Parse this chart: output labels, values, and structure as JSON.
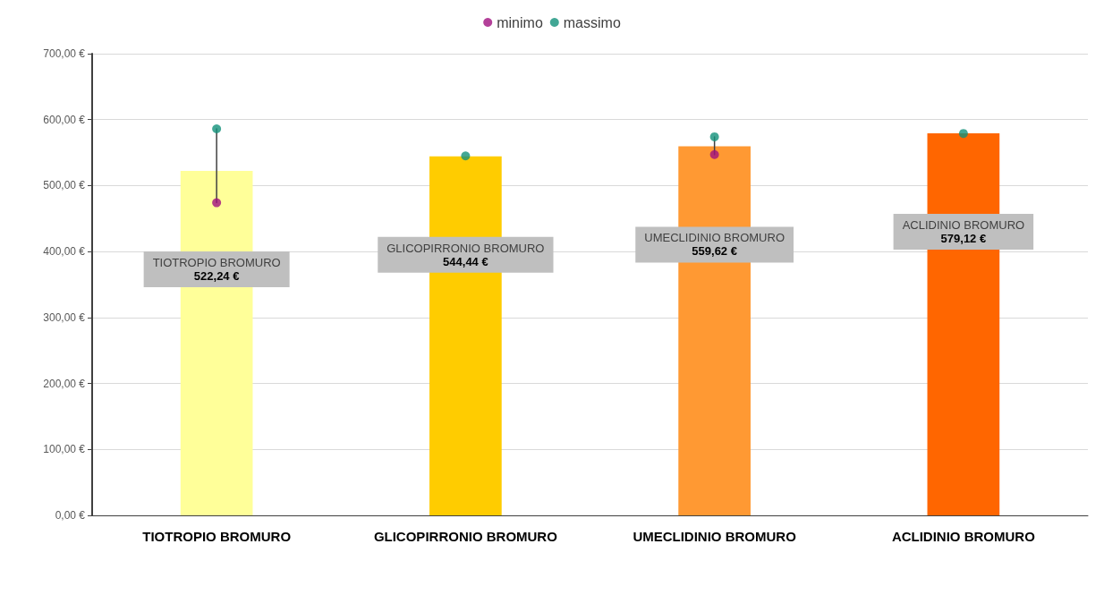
{
  "chart_data": {
    "type": "bar",
    "categories": [
      "TIOTROPIO BROMURO",
      "GLICOPIRRONIO BROMURO",
      "UMECLIDINIO BROMURO",
      "ACLIDINIO BROMURO"
    ],
    "series": [
      {
        "type": "bar",
        "values": [
          522.24,
          544.44,
          559.62,
          579.12
        ],
        "colors": [
          "#ffff99",
          "#ffcc00",
          "#ff9933",
          "#ff6600"
        ],
        "value_labels": [
          "522,24 €",
          "544,44 €",
          "559,62 €",
          "579,12 €"
        ]
      },
      {
        "type": "scatter",
        "name": "minimo",
        "color": "#a0107f",
        "values": [
          474,
          null,
          547,
          null
        ]
      },
      {
        "type": "line",
        "color": "#404040",
        "marker": "none",
        "x": [
          "TIOTROPIO BROMURO",
          "TIOTROPIO BROMURO"
        ],
        "values": [
          474,
          586
        ]
      },
      {
        "type": "line",
        "color": "#404040",
        "marker": "none",
        "x": [
          "UMECLIDINIO BROMURO",
          "UMECLIDINIO BROMURO"
        ],
        "values": [
          547,
          574
        ]
      },
      {
        "type": "scatter",
        "name": "massimo",
        "color": "#13917a",
        "values": [
          586,
          545,
          574,
          579
        ]
      }
    ],
    "ylim": [
      0,
      700
    ],
    "yticks": [
      {
        "value": 0,
        "label": "0,00 €"
      },
      {
        "value": 100,
        "label": "100,00 €"
      },
      {
        "value": 200,
        "label": "200,00 €"
      },
      {
        "value": 300,
        "label": "300,00 €"
      },
      {
        "value": 400,
        "label": "400,00 €"
      },
      {
        "value": 500,
        "label": "500,00 €"
      },
      {
        "value": 600,
        "label": "600,00 €"
      },
      {
        "value": 700,
        "label": "700,00 €"
      }
    ],
    "grid": "y",
    "legend": "top",
    "marker": "circle"
  }
}
